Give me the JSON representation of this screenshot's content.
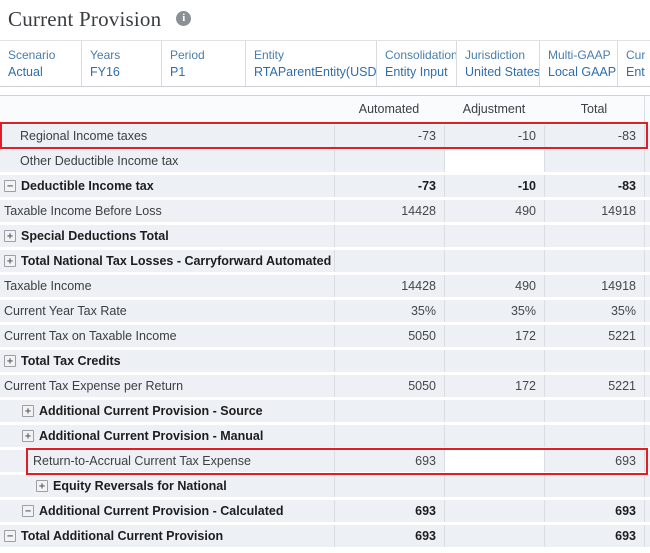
{
  "page": {
    "title": "Current Provision"
  },
  "icons": {
    "info": "i"
  },
  "glyphs": {
    "plus": "+",
    "minus": "−"
  },
  "pov": {
    "segments": [
      {
        "dimension": "Scenario",
        "member": "Actual"
      },
      {
        "dimension": "Years",
        "member": "FY16"
      },
      {
        "dimension": "Period",
        "member": "P1"
      },
      {
        "dimension": "Entity",
        "member": "RTAParentEntity(USD)"
      },
      {
        "dimension": "Consolidation",
        "member": "Entity Input"
      },
      {
        "dimension": "Jurisdiction",
        "member": "United States"
      },
      {
        "dimension": "Multi-GAAP",
        "member": "Local GAAP"
      },
      {
        "dimension": "Cur",
        "member": "Ent"
      }
    ]
  },
  "table": {
    "columns": [
      "Automated",
      "Adjustment",
      "Total"
    ],
    "rows": [
      {
        "label": "Regional Income taxes",
        "icon": null,
        "bold": false,
        "values": [
          "-73",
          "-10",
          "-83"
        ]
      },
      {
        "label": "Other Deductible Income tax",
        "icon": null,
        "bold": false,
        "values": [
          "",
          "",
          ""
        ]
      },
      {
        "label": "Deductible Income tax",
        "icon": "minus",
        "bold": true,
        "values": [
          "-73",
          "-10",
          "-83"
        ]
      },
      {
        "label": "Taxable Income Before Loss",
        "icon": null,
        "bold": false,
        "values": [
          "14428",
          "490",
          "14918"
        ]
      },
      {
        "label": "Special Deductions Total",
        "icon": "plus",
        "bold": true,
        "values": [
          "",
          "",
          ""
        ]
      },
      {
        "label": "Total National Tax Losses - Carryforward Automated",
        "icon": "plus",
        "bold": true,
        "values": [
          "",
          "",
          ""
        ]
      },
      {
        "label": "Taxable Income",
        "icon": null,
        "bold": false,
        "values": [
          "14428",
          "490",
          "14918"
        ]
      },
      {
        "label": "Current Year Tax Rate",
        "icon": null,
        "bold": false,
        "values": [
          "35%",
          "35%",
          "35%"
        ]
      },
      {
        "label": "Current Tax on Taxable Income",
        "icon": null,
        "bold": false,
        "values": [
          "5050",
          "172",
          "5221"
        ]
      },
      {
        "label": "Total Tax Credits",
        "icon": "plus",
        "bold": true,
        "values": [
          "",
          "",
          ""
        ]
      },
      {
        "label": "Current Tax Expense per Return",
        "icon": null,
        "bold": false,
        "values": [
          "5050",
          "172",
          "5221"
        ]
      },
      {
        "label": "Additional Current Provision - Source",
        "icon": "plus",
        "bold": true,
        "values": [
          "",
          "",
          ""
        ]
      },
      {
        "label": "Additional Current Provision - Manual",
        "icon": "plus",
        "bold": true,
        "values": [
          "",
          "",
          ""
        ]
      },
      {
        "label": "Return-to-Accrual Current Tax Expense",
        "icon": null,
        "bold": false,
        "values": [
          "693",
          "",
          "693"
        ]
      },
      {
        "label": "Equity Reversals for National",
        "icon": "plus",
        "bold": true,
        "values": [
          "",
          "",
          ""
        ]
      },
      {
        "label": "Additional Current Provision - Calculated",
        "icon": "minus",
        "bold": true,
        "values": [
          "693",
          "",
          "693"
        ]
      },
      {
        "label": "Total Additional Current Provision",
        "icon": "minus",
        "bold": true,
        "values": [
          "693",
          "",
          "693"
        ]
      }
    ]
  },
  "annotations": {
    "highlighted_rows": [
      "Regional Income taxes",
      "Return-to-Accrual Current Tax Expense"
    ],
    "highlight_color": "#e01e25"
  },
  "colors": {
    "pov_dimension_blue": "#4a7dab",
    "pov_member_blue": "#2f6daf",
    "cell_background": "#edf0f4",
    "editable_cell_background": "#ffffff"
  }
}
